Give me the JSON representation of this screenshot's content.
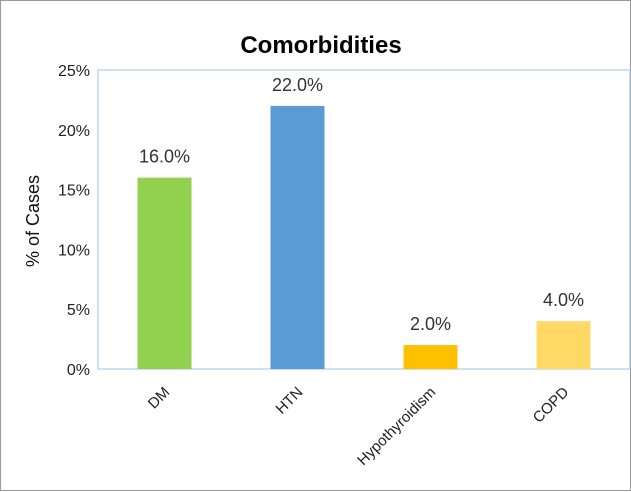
{
  "chart_data": {
    "type": "bar",
    "title": "Comorbidities",
    "xlabel": "",
    "ylabel": "% of Cases",
    "categories": [
      "DM",
      "HTN",
      "Hypothyroidism",
      "COPD"
    ],
    "values": [
      16.0,
      22.0,
      2.0,
      4.0
    ],
    "value_labels": [
      "16.0%",
      "22.0%",
      "2.0%",
      "4.0%"
    ],
    "bar_colors": [
      "#92d050",
      "#5b9bd5",
      "#ffc000",
      "#ffd966"
    ],
    "ylim": [
      0,
      25
    ],
    "y_ticks": [
      0,
      5,
      10,
      15,
      20,
      25
    ],
    "y_tick_labels": [
      "0%",
      "5%",
      "10%",
      "15%",
      "20%",
      "25%"
    ],
    "grid": false,
    "legend": "none",
    "plot_border_color": "#9dc3e6"
  }
}
